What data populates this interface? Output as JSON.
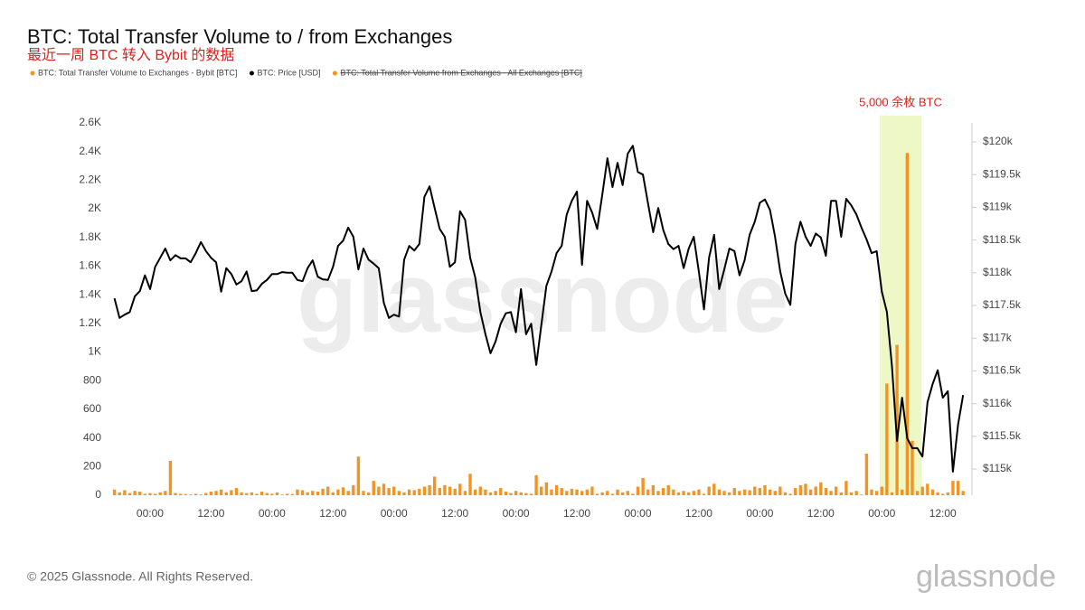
{
  "chart_data": {
    "type": "bar-line",
    "title": "BTC: Total Transfer Volume to / from Exchanges",
    "subtitle": "最近一周 BTC 转入 Bybit 的数据",
    "annotation": "5,000 余枚 BTC",
    "footer": "© 2025 Glassnode. All Rights Reserved.",
    "watermark": "glassnode",
    "logo": "glassnode",
    "categories": [
      null,
      null,
      null,
      null,
      null,
      null,
      null,
      "00:00",
      null,
      null,
      null,
      null,
      null,
      null,
      null,
      null,
      null,
      null,
      null,
      "12:00",
      null,
      null,
      null,
      null,
      null,
      null,
      null,
      null,
      null,
      null,
      null,
      "00:00",
      null,
      null,
      null,
      null,
      null,
      null,
      null,
      null,
      null,
      null,
      null,
      "12:00",
      null,
      null,
      null,
      null,
      null,
      null,
      null,
      null,
      null,
      null,
      null,
      "00:00",
      null,
      null,
      null,
      null,
      null,
      null,
      null,
      null,
      null,
      null,
      null,
      "12:00",
      null,
      null,
      null,
      null,
      null,
      null,
      null,
      null,
      null,
      null,
      null,
      "00:00",
      null,
      null,
      null,
      null,
      null,
      null,
      null,
      null,
      null,
      null,
      null,
      "12:00",
      null,
      null,
      null,
      null,
      null,
      null,
      null,
      null,
      null,
      null,
      null,
      "00:00",
      null,
      null,
      null,
      null,
      null,
      null,
      null,
      null,
      null,
      null,
      null,
      "12:00",
      null,
      null,
      null,
      null,
      null,
      null,
      null,
      null,
      null,
      null,
      null,
      "00:00",
      null,
      null,
      null,
      null,
      null,
      null,
      null,
      null,
      null,
      null,
      null,
      "12:00",
      null,
      null,
      null,
      null,
      null,
      null,
      null,
      null,
      null,
      null,
      null,
      "00:00",
      null,
      null,
      null,
      null,
      null,
      null,
      null,
      null,
      null,
      null,
      null,
      "12:00",
      null,
      null,
      null,
      null
    ],
    "series": [
      {
        "name": "BTC: Total Transfer Volume to Exchanges - Bybit [BTC]",
        "color": "#f39322",
        "kind": "bar",
        "axis": "y",
        "values": [
          40,
          20,
          35,
          15,
          30,
          25,
          10,
          15,
          10,
          20,
          30,
          240,
          15,
          10,
          8,
          5,
          10,
          5,
          15,
          25,
          30,
          40,
          20,
          35,
          50,
          20,
          15,
          20,
          10,
          25,
          15,
          10,
          20,
          5,
          10,
          8,
          40,
          35,
          20,
          30,
          25,
          45,
          60,
          20,
          40,
          55,
          30,
          70,
          270,
          30,
          20,
          100,
          60,
          80,
          50,
          60,
          30,
          20,
          40,
          35,
          45,
          60,
          70,
          130,
          50,
          70,
          60,
          45,
          80,
          30,
          150,
          40,
          60,
          40,
          20,
          30,
          50,
          25,
          15,
          30,
          20,
          15,
          10,
          140,
          60,
          90,
          40,
          70,
          50,
          30,
          45,
          40,
          30,
          40,
          60,
          10,
          20,
          30,
          10,
          40,
          20,
          30,
          10,
          60,
          120,
          40,
          70,
          30,
          50,
          70,
          40,
          20,
          30,
          20,
          30,
          40,
          10,
          60,
          80,
          40,
          30,
          20,
          50,
          30,
          40,
          35,
          60,
          50,
          70,
          40,
          30,
          60,
          20,
          10,
          50,
          70,
          80,
          40,
          60,
          90,
          50,
          30,
          60,
          20,
          100,
          20,
          30,
          5,
          290,
          40,
          30,
          60,
          780,
          20,
          1050,
          40,
          2390,
          380,
          30,
          60,
          80,
          40,
          20,
          10,
          20,
          100,
          100,
          30
        ]
      },
      {
        "name": "BTC: Price [USD]",
        "color": "#000000",
        "kind": "line",
        "axis": "y2",
        "values": [
          117610,
          117310,
          117360,
          117400,
          117640,
          117720,
          117960,
          117750,
          118090,
          118230,
          118370,
          118190,
          118270,
          118220,
          118220,
          118160,
          118300,
          118470,
          118330,
          118230,
          118160,
          117710,
          118070,
          117980,
          117820,
          117870,
          118020,
          117720,
          117730,
          117830,
          117890,
          117980,
          117980,
          118010,
          118000,
          118000,
          117890,
          117870,
          118070,
          118190,
          117940,
          117900,
          117890,
          118090,
          118410,
          118490,
          118690,
          118550,
          118050,
          118370,
          118200,
          118140,
          118070,
          117540,
          117310,
          117360,
          117330,
          118200,
          118410,
          118340,
          118440,
          119160,
          119320,
          118990,
          118670,
          118550,
          118090,
          118160,
          118940,
          118810,
          118230,
          117930,
          117400,
          117060,
          116770,
          116950,
          117220,
          117380,
          117400,
          117090,
          117750,
          117060,
          117220,
          116590,
          117200,
          117800,
          118020,
          118300,
          118410,
          118890,
          119100,
          119240,
          118120,
          119100,
          118920,
          118670,
          119200,
          119750,
          119310,
          119680,
          119340,
          119820,
          119940,
          119540,
          119500,
          119060,
          118620,
          118990,
          118650,
          118440,
          118360,
          118410,
          118070,
          118370,
          118550,
          118020,
          117440,
          118230,
          118580,
          117750,
          118050,
          118370,
          118330,
          117960,
          118190,
          118580,
          118780,
          119070,
          119120,
          118960,
          118550,
          118020,
          117680,
          117510,
          118440,
          118780,
          118550,
          118410,
          118600,
          118540,
          118260,
          119100,
          119100,
          118550,
          119130,
          119030,
          118890,
          118690,
          118510,
          118300,
          118330,
          117710,
          117400,
          116570,
          115430,
          116090,
          115470,
          115320,
          115320,
          115190,
          116020,
          116300,
          116510,
          116090,
          116190,
          114960,
          115680,
          116130
        ]
      },
      {
        "name": "BTC: Total Transfer Volume from Exchanges - All Exchanges [BTC]",
        "color": "#f39322",
        "kind": "bar",
        "hidden": true
      }
    ],
    "ylim": [
      0,
      2600
    ],
    "yticks": [
      0,
      200,
      400,
      600,
      800,
      {
        "value": 1000,
        "label": "1K"
      },
      {
        "value": 1200,
        "label": "1.2K"
      },
      {
        "value": 1400,
        "label": "1.4K"
      },
      {
        "value": 1600,
        "label": "1.6K"
      },
      {
        "value": 1800,
        "label": "1.8K"
      },
      {
        "value": 2000,
        "label": "2K"
      },
      {
        "value": 2200,
        "label": "2.2K"
      },
      {
        "value": 2400,
        "label": "2.4K"
      },
      {
        "value": 2600,
        "label": "2.6K"
      }
    ],
    "y2lim": [
      114600,
      120290
    ],
    "y2ticks": [
      {
        "value": 115000,
        "label": "$115k"
      },
      {
        "value": 115500,
        "label": "$115.5k"
      },
      {
        "value": 116000,
        "label": "$116k"
      },
      {
        "value": 116500,
        "label": "$116.5k"
      },
      {
        "value": 117000,
        "label": "$117k"
      },
      {
        "value": 117500,
        "label": "$117.5k"
      },
      {
        "value": 118000,
        "label": "$118k"
      },
      {
        "value": 118500,
        "label": "$118.5k"
      },
      {
        "value": 119000,
        "label": "$119k"
      },
      {
        "value": 119500,
        "label": "$119.5k"
      },
      {
        "value": 120000,
        "label": "$120k"
      }
    ],
    "grid": false
  }
}
